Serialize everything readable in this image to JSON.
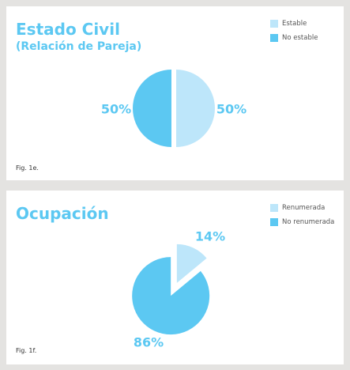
{
  "colors": {
    "light": "#bde6fa",
    "dark": "#5cc8f2",
    "text": "#5cc8f2"
  },
  "chart_data": [
    {
      "type": "pie",
      "title": "Estado Civil",
      "subtitle": "(Relación de Pareja)",
      "caption": "Fig. 1e.",
      "legend_position": "top-right",
      "slices": [
        {
          "name": "Estable",
          "value": 50,
          "label": "50%"
        },
        {
          "name": "No estable",
          "value": 50,
          "label": "50%"
        }
      ]
    },
    {
      "type": "pie",
      "title": "Ocupación",
      "caption": "Fig. 1f.",
      "legend_position": "top-right",
      "slices": [
        {
          "name": "Renumerada",
          "value": 14,
          "label": "14%"
        },
        {
          "name": "No renumerada",
          "value": 86,
          "label": "86%"
        }
      ]
    }
  ]
}
